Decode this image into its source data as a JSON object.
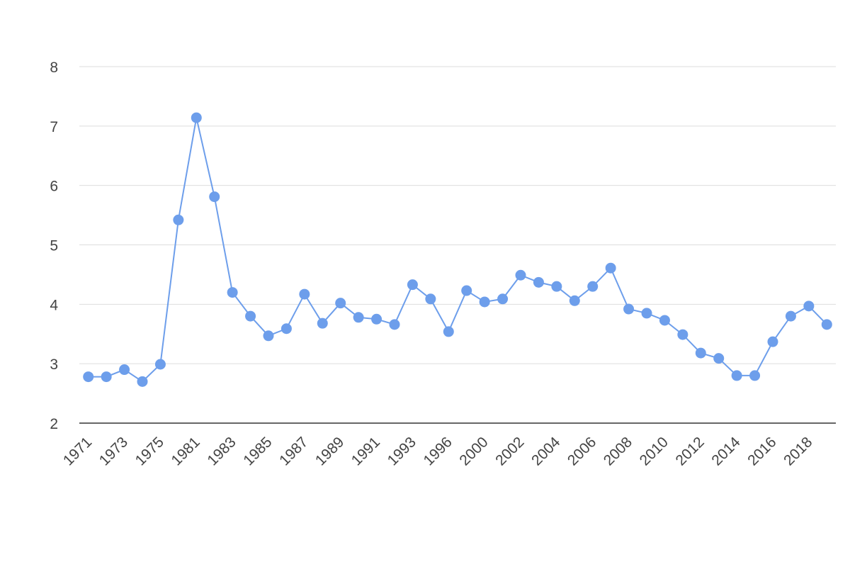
{
  "chart_data": {
    "type": "line",
    "categories": [
      "1971",
      null,
      "1973",
      null,
      "1975",
      null,
      "1981",
      null,
      "1983",
      null,
      "1985",
      null,
      "1987",
      null,
      "1989",
      null,
      "1991",
      null,
      "1993",
      null,
      "1996",
      null,
      "2000",
      null,
      "2002",
      null,
      "2004",
      null,
      "2006",
      null,
      "2008",
      null,
      "2010",
      null,
      "2012",
      null,
      "2014",
      null,
      "2016",
      null,
      "2018",
      null
    ],
    "series": [
      {
        "color": "#6d9eeb",
        "values": [
          2.78,
          2.78,
          2.9,
          2.7,
          2.99,
          5.42,
          7.14,
          5.81,
          4.2,
          3.8,
          3.47,
          3.59,
          4.17,
          3.68,
          4.02,
          3.78,
          3.75,
          3.66,
          4.33,
          4.09,
          3.54,
          4.23,
          4.04,
          4.09,
          4.49,
          4.37,
          4.3,
          4.06,
          4.3,
          4.61,
          3.92,
          3.85,
          3.73,
          3.49,
          3.18,
          3.09,
          2.8,
          2.8,
          3.37,
          3.8,
          3.97,
          3.66
        ]
      }
    ],
    "ylim": [
      2,
      8
    ],
    "yticks": [
      2,
      3,
      4,
      5,
      6,
      7,
      8
    ],
    "grid": true
  }
}
